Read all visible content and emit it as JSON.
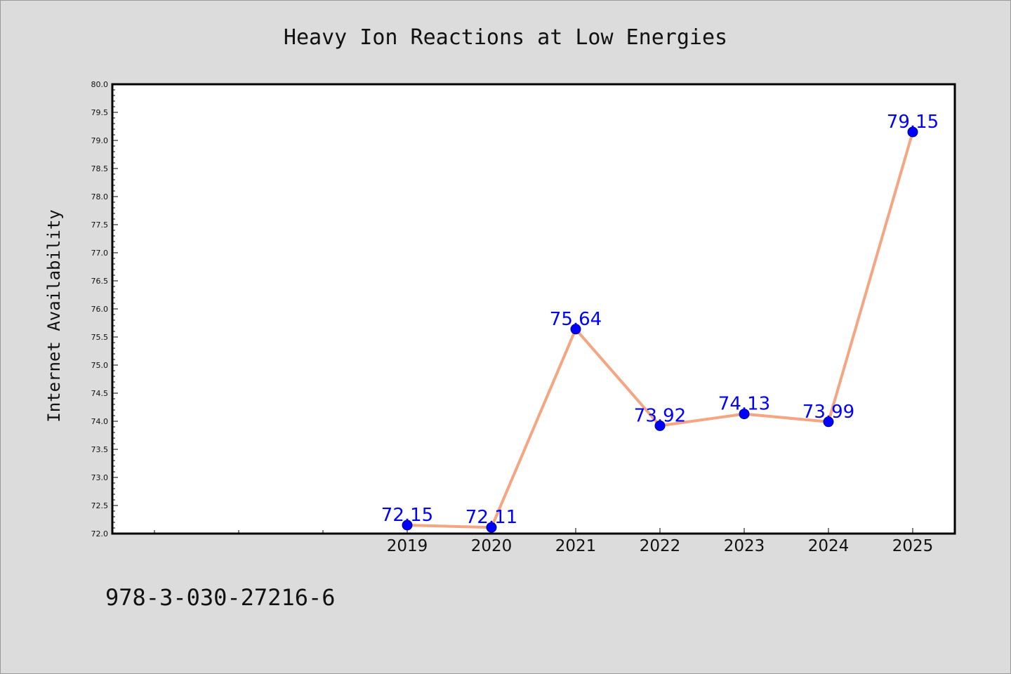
{
  "chart_data": {
    "type": "line",
    "title": "Heavy Ion Reactions at Low Energies",
    "xlabel": "",
    "ylabel": "Internet Availability",
    "x": [
      "2019",
      "2020",
      "2021",
      "2022",
      "2023",
      "2024",
      "2025"
    ],
    "values": [
      72.15,
      72.11,
      75.64,
      73.92,
      74.13,
      73.99,
      79.15
    ],
    "data_labels": [
      "72.15",
      "72.11",
      "75.64",
      "73.92",
      "74.13",
      "73.99",
      "79.15"
    ],
    "ylim": [
      72.0,
      80.0
    ],
    "yticks": [
      "72.0",
      "72.5",
      "73.0",
      "73.5",
      "74.0",
      "74.5",
      "75.0",
      "75.5",
      "76.0",
      "76.5",
      "77.0",
      "77.5",
      "78.0",
      "78.5",
      "79.0",
      "79.5",
      "80.0"
    ],
    "grid": false,
    "line_color": "#f4a582",
    "marker_color": "#0000ff",
    "label_color": "#0000ff"
  },
  "footer_text": "978-3-030-27216-6"
}
